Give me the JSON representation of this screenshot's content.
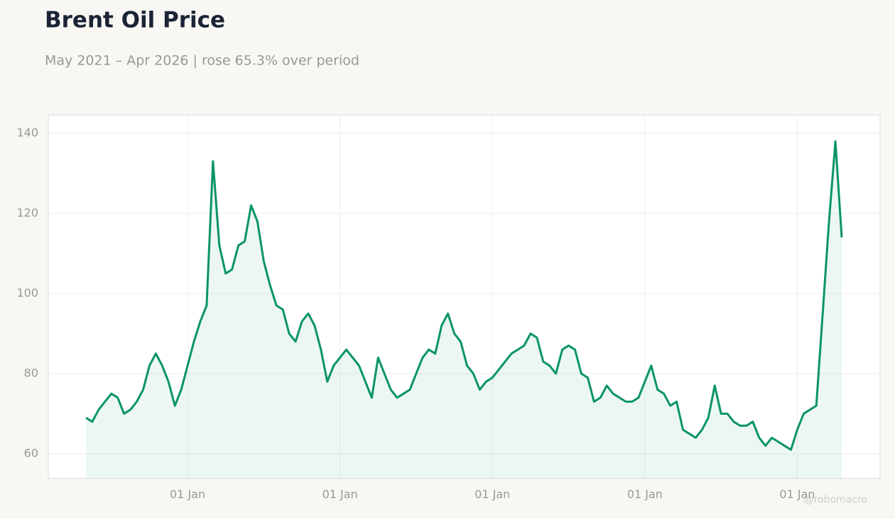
{
  "chart_data": {
    "type": "line",
    "title": "Brent Oil Price",
    "subtitle": "May 2021 – Apr 2026 | rose 65.3% over period",
    "watermark": "@robomacro",
    "categories": [
      null,
      null,
      null,
      null,
      null,
      null,
      null,
      null,
      null,
      null,
      null,
      null,
      null,
      null,
      null,
      null,
      "01 Jan",
      null,
      null,
      null,
      null,
      null,
      null,
      null,
      null,
      null,
      null,
      null,
      null,
      null,
      null,
      null,
      null,
      null,
      null,
      null,
      null,
      null,
      null,
      null,
      "01 Jan",
      null,
      null,
      null,
      null,
      null,
      null,
      null,
      null,
      null,
      null,
      null,
      null,
      null,
      null,
      null,
      null,
      null,
      null,
      null,
      null,
      null,
      null,
      null,
      "01 Jan",
      null,
      null,
      null,
      null,
      null,
      null,
      null,
      null,
      null,
      null,
      null,
      null,
      null,
      null,
      null,
      null,
      null,
      null,
      null,
      null,
      null,
      null,
      null,
      "01 Jan",
      null,
      null,
      null,
      null,
      null,
      null,
      null,
      null,
      null,
      null,
      null,
      null,
      null,
      null,
      null,
      null,
      null,
      null,
      null,
      null,
      null,
      null,
      null,
      "01 Jan",
      null,
      null,
      null,
      null,
      null,
      null,
      null
    ],
    "series": [
      {
        "name": "Brent",
        "color": "#0a9467",
        "values": [
          69,
          68,
          71,
          73,
          75,
          74,
          70,
          71,
          73,
          76,
          82,
          85,
          82,
          78,
          72,
          76,
          82,
          88,
          93,
          97,
          133,
          112,
          105,
          106,
          112,
          113,
          122,
          118,
          108,
          102,
          97,
          96,
          90,
          88,
          93,
          95,
          92,
          86,
          78,
          82,
          84,
          86,
          84,
          82,
          78,
          74,
          84,
          80,
          76,
          74,
          75,
          76,
          80,
          84,
          86,
          85,
          92,
          95,
          90,
          88,
          82,
          80,
          76,
          78,
          79,
          81,
          83,
          85,
          86,
          87,
          90,
          89,
          83,
          82,
          80,
          86,
          87,
          86,
          80,
          79,
          73,
          74,
          77,
          75,
          74,
          73,
          73,
          74,
          78,
          82,
          76,
          75,
          72,
          73,
          66,
          65,
          64,
          66,
          69,
          77,
          70,
          70,
          68,
          67,
          67,
          68,
          64,
          62,
          64,
          63,
          62,
          61,
          66,
          70,
          71,
          72,
          95,
          118,
          138,
          114
        ]
      }
    ],
    "ylim": [
      53.8,
      144.6
    ],
    "yticks": [
      60,
      80,
      100,
      120,
      140
    ],
    "grid": true
  }
}
